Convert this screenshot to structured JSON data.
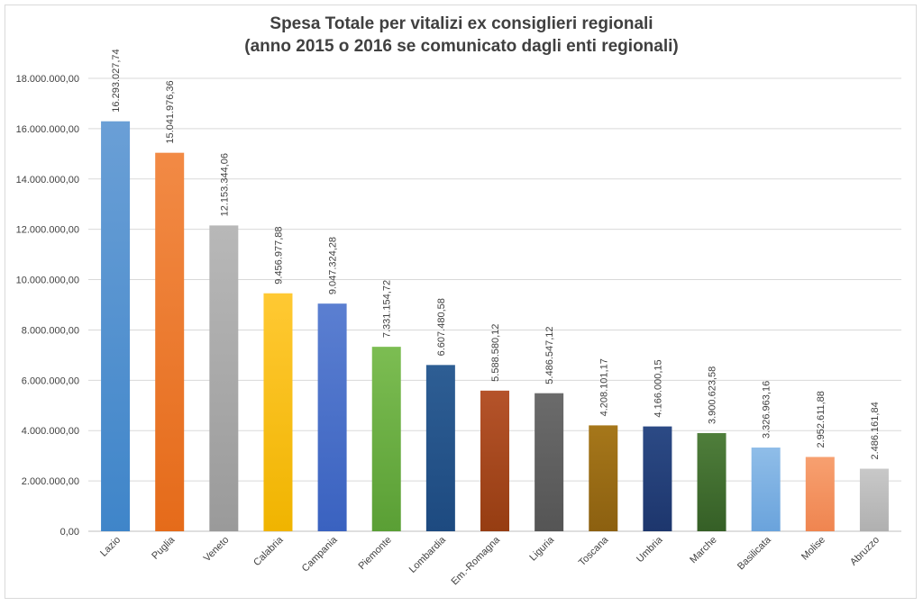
{
  "chart_data": {
    "type": "bar",
    "title": "Spesa Totale per vitalizi ex consiglieri regionali",
    "subtitle": "(anno 2015 o 2016 se comunicato dagli enti regionali)",
    "xlabel": "",
    "ylabel": "",
    "ylim": [
      0,
      18000000
    ],
    "yticks": [
      0,
      2000000,
      4000000,
      6000000,
      8000000,
      10000000,
      12000000,
      14000000,
      16000000,
      18000000
    ],
    "ytick_labels": [
      "0,00",
      "2.000.000,00",
      "4.000.000,00",
      "6.000.000,00",
      "8.000.000,00",
      "10.000.000,00",
      "12.000.000,00",
      "14.000.000,00",
      "16.000.000,00",
      "18.000.000,00"
    ],
    "grid": true,
    "legend": "none",
    "categories": [
      "Lazio",
      "Puglia",
      "Veneto",
      "Calabria",
      "Campania",
      "Piemonte",
      "Lombardia",
      "Em.-Romagna",
      "Liguria",
      "Toscana",
      "Umbria",
      "Marche",
      "Basilicata",
      "Molise",
      "Abruzzo"
    ],
    "values": [
      16293027.74,
      15041976.36,
      12153344.06,
      9456977.88,
      9047324.28,
      7331154.72,
      6607480.58,
      5588580.12,
      5486547.12,
      4208101.17,
      4166000.15,
      3900623.58,
      3326963.16,
      2952611.88,
      2486161.84
    ],
    "data_labels": [
      "16.293.027,74",
      "15.041.976,36",
      "12.153.344,06",
      "9.456.977,88",
      "9.047.324,28",
      "7.331.154,72",
      "6.607.480,58",
      "5.588.580,12",
      "5.486.547,12",
      "4.208.101,17",
      "4.166.000,15",
      "3.900.623,58",
      "3.326.963,16",
      "2.952.611,88",
      "2.486.161,84"
    ],
    "colors": [
      [
        "#6a9fd6",
        "#3f85c9"
      ],
      [
        "#f28a45",
        "#e56b1a"
      ],
      [
        "#b8b8b8",
        "#9a9a9a"
      ],
      [
        "#ffc933",
        "#f0b400"
      ],
      [
        "#5b7fd1",
        "#3a62c0"
      ],
      [
        "#7cbd52",
        "#5a9f35"
      ],
      [
        "#2e5e94",
        "#1d4a80"
      ],
      [
        "#b5532a",
        "#963d12"
      ],
      [
        "#6b6b6b",
        "#555555"
      ],
      [
        "#a6771a",
        "#8c6010"
      ],
      [
        "#2c4a85",
        "#1d366d"
      ],
      [
        "#4f7e3b",
        "#355f26"
      ],
      [
        "#8fbde8",
        "#6aa3dc"
      ],
      [
        "#f7a070",
        "#ef8550"
      ],
      [
        "#c8c8c8",
        "#b0b0b0"
      ]
    ]
  }
}
